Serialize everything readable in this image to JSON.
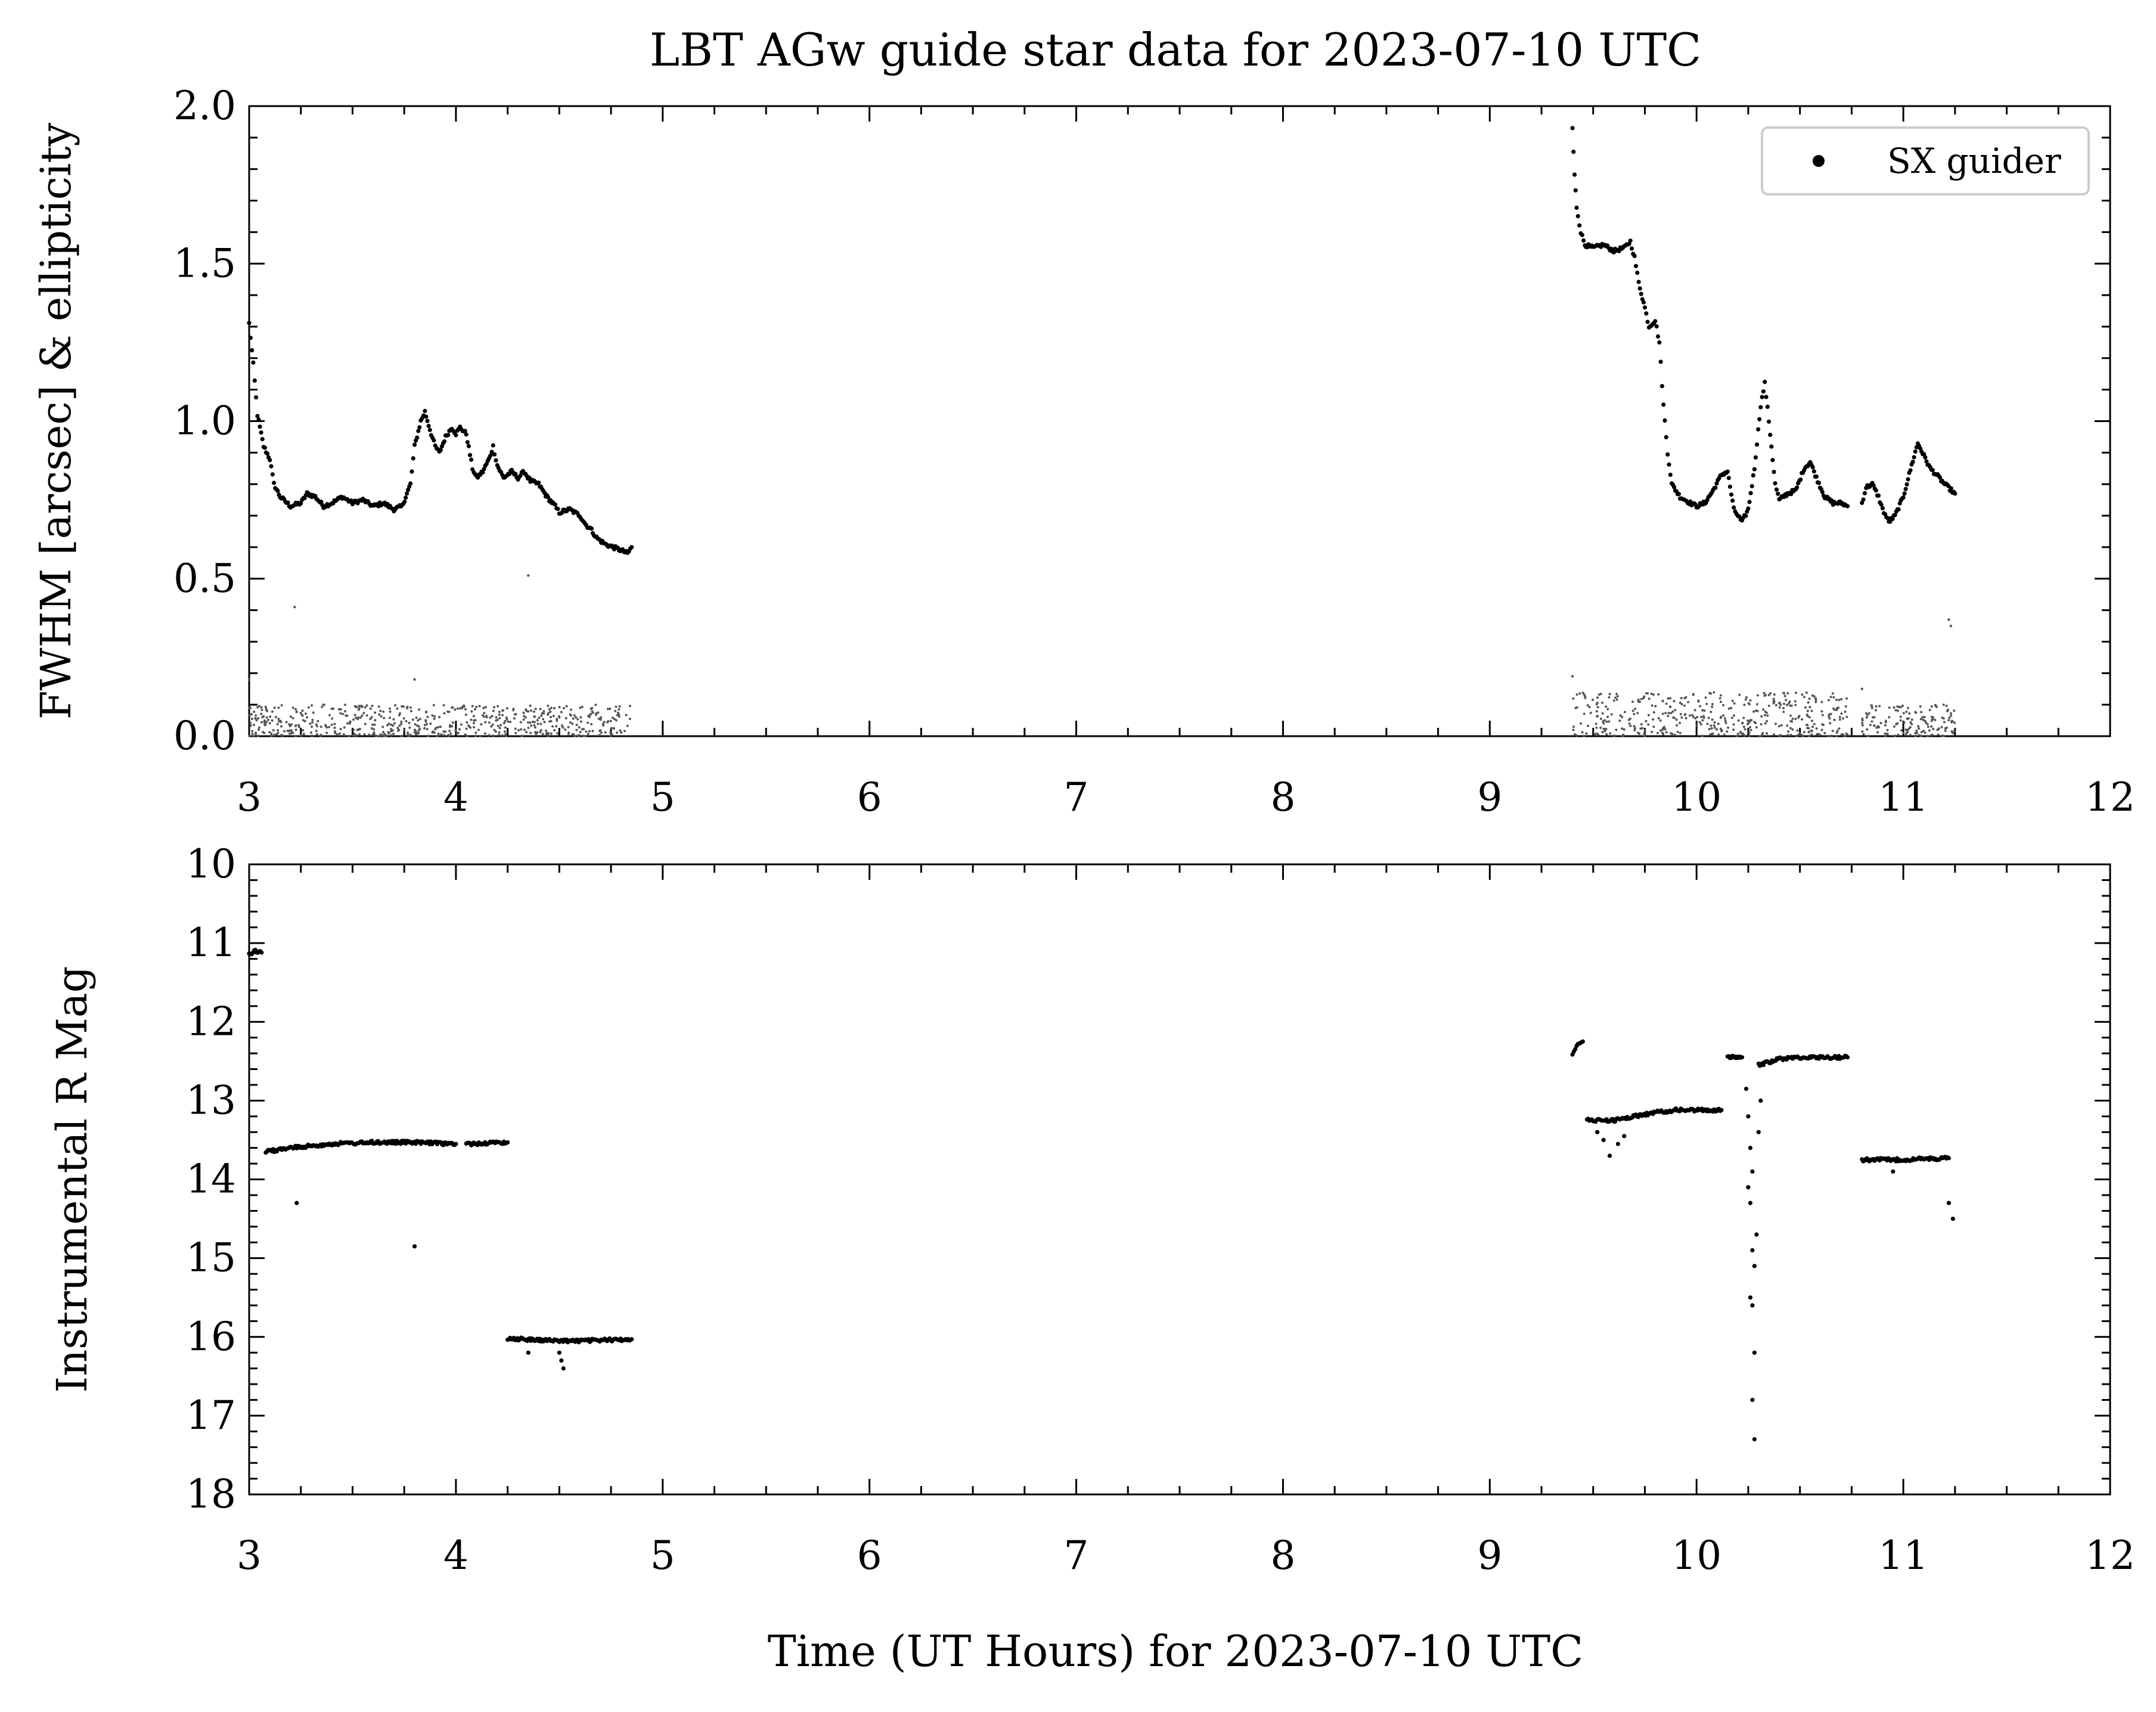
{
  "figure": {
    "title": "LBT AGw guide star data for 2023-07-10 UTC",
    "xlabel": "Time (UT Hours) for 2023-07-10 UTC"
  },
  "colors": {
    "fwhm": "#000000",
    "ellipticity": "#555555",
    "axes": "#000000",
    "legend_border": "#cccccc"
  },
  "chart_data": [
    {
      "type": "scatter",
      "title": "LBT AGw guide star data for 2023-07-10 UTC",
      "xlabel": "",
      "ylabel": "FWHM [arcsec] & ellipticity",
      "xlim": [
        3,
        12
      ],
      "ylim": [
        0,
        2.0
      ],
      "xticks": [
        3,
        4,
        5,
        6,
        7,
        8,
        9,
        10,
        11,
        12
      ],
      "yticks": [
        0.0,
        0.5,
        1.0,
        1.5,
        2.0
      ],
      "ytick_labels": [
        "0.0",
        "0.5",
        "1.0",
        "1.5",
        "2.0"
      ],
      "grid": false,
      "legend": {
        "position": "top-right",
        "entries": [
          "SX guider"
        ]
      },
      "series": [
        {
          "name": "SX guider",
          "kind": "fwhm",
          "segments": [
            [
              [
                3.0,
                1.31
              ],
              [
                3.02,
                1.18
              ],
              [
                3.04,
                1.02
              ],
              [
                3.07,
                0.92
              ],
              [
                3.1,
                0.88
              ],
              [
                3.12,
                0.8
              ],
              [
                3.15,
                0.76
              ],
              [
                3.2,
                0.73
              ],
              [
                3.25,
                0.74
              ],
              [
                3.28,
                0.77
              ],
              [
                3.32,
                0.76
              ],
              [
                3.36,
                0.73
              ],
              [
                3.4,
                0.74
              ],
              [
                3.45,
                0.76
              ],
              [
                3.5,
                0.74
              ],
              [
                3.55,
                0.75
              ],
              [
                3.6,
                0.73
              ],
              [
                3.65,
                0.74
              ],
              [
                3.7,
                0.72
              ],
              [
                3.74,
                0.73
              ],
              [
                3.78,
                0.8
              ],
              [
                3.8,
                0.92
              ],
              [
                3.83,
                1.0
              ],
              [
                3.85,
                1.03
              ],
              [
                3.88,
                0.96
              ],
              [
                3.9,
                0.92
              ],
              [
                3.92,
                0.9
              ],
              [
                3.95,
                0.95
              ],
              [
                3.98,
                0.98
              ],
              [
                4.0,
                0.96
              ],
              [
                4.02,
                0.98
              ],
              [
                4.05,
                0.96
              ],
              [
                4.08,
                0.85
              ],
              [
                4.1,
                0.82
              ],
              [
                4.13,
                0.84
              ],
              [
                4.16,
                0.88
              ],
              [
                4.18,
                0.92
              ],
              [
                4.2,
                0.86
              ],
              [
                4.23,
                0.82
              ],
              [
                4.27,
                0.84
              ],
              [
                4.3,
                0.82
              ],
              [
                4.33,
                0.84
              ],
              [
                4.36,
                0.81
              ],
              [
                4.4,
                0.8
              ],
              [
                4.44,
                0.76
              ],
              [
                4.48,
                0.73
              ],
              [
                4.5,
                0.71
              ],
              [
                4.55,
                0.72
              ],
              [
                4.6,
                0.7
              ],
              [
                4.63,
                0.67
              ],
              [
                4.65,
                0.66
              ],
              [
                4.68,
                0.63
              ],
              [
                4.72,
                0.61
              ],
              [
                4.76,
                0.6
              ],
              [
                4.8,
                0.59
              ],
              [
                4.83,
                0.58
              ],
              [
                4.85,
                0.6
              ]
            ],
            [
              [
                9.4,
                1.93
              ],
              [
                9.41,
                1.78
              ],
              [
                9.42,
                1.68
              ],
              [
                9.44,
                1.6
              ],
              [
                9.46,
                1.56
              ],
              [
                9.5,
                1.55
              ],
              [
                9.55,
                1.56
              ],
              [
                9.6,
                1.54
              ],
              [
                9.65,
                1.55
              ],
              [
                9.68,
                1.57
              ],
              [
                9.7,
                1.52
              ],
              [
                9.72,
                1.44
              ],
              [
                9.75,
                1.36
              ],
              [
                9.77,
                1.3
              ],
              [
                9.8,
                1.32
              ],
              [
                9.82,
                1.25
              ],
              [
                9.84,
                1.05
              ],
              [
                9.86,
                0.9
              ],
              [
                9.88,
                0.8
              ],
              [
                9.92,
                0.76
              ],
              [
                9.97,
                0.74
              ],
              [
                10.0,
                0.73
              ],
              [
                10.04,
                0.74
              ],
              [
                10.08,
                0.78
              ],
              [
                10.12,
                0.83
              ],
              [
                10.15,
                0.84
              ],
              [
                10.18,
                0.72
              ],
              [
                10.2,
                0.7
              ],
              [
                10.22,
                0.68
              ],
              [
                10.25,
                0.72
              ],
              [
                10.28,
                0.85
              ],
              [
                10.31,
                1.05
              ],
              [
                10.33,
                1.12
              ],
              [
                10.35,
                1.0
              ],
              [
                10.38,
                0.8
              ],
              [
                10.4,
                0.75
              ],
              [
                10.44,
                0.77
              ],
              [
                10.48,
                0.78
              ],
              [
                10.52,
                0.85
              ],
              [
                10.55,
                0.87
              ],
              [
                10.58,
                0.82
              ],
              [
                10.62,
                0.76
              ],
              [
                10.66,
                0.74
              ],
              [
                10.7,
                0.74
              ],
              [
                10.73,
                0.73
              ]
            ],
            [
              [
                10.8,
                0.74
              ],
              [
                10.82,
                0.79
              ],
              [
                10.85,
                0.8
              ],
              [
                10.88,
                0.76
              ],
              [
                10.9,
                0.72
              ],
              [
                10.93,
                0.68
              ],
              [
                10.96,
                0.7
              ],
              [
                11.0,
                0.76
              ],
              [
                11.04,
                0.86
              ],
              [
                11.07,
                0.93
              ],
              [
                11.1,
                0.89
              ],
              [
                11.13,
                0.85
              ],
              [
                11.16,
                0.83
              ],
              [
                11.2,
                0.8
              ],
              [
                11.25,
                0.77
              ]
            ]
          ]
        },
        {
          "name": "",
          "kind": "ellipticity",
          "ranges": [
            {
              "x": [
                3.0,
                4.85
              ],
              "y": [
                0.0,
                0.1
              ]
            },
            {
              "x": [
                9.4,
                10.73
              ],
              "y": [
                0.0,
                0.14
              ]
            },
            {
              "x": [
                10.8,
                11.25
              ],
              "y": [
                0.0,
                0.1
              ]
            }
          ],
          "outliers": [
            [
              3.0,
              0.18
            ],
            [
              3.22,
              0.41
            ],
            [
              3.8,
              0.18
            ],
            [
              4.35,
              0.51
            ],
            [
              9.4,
              0.19
            ],
            [
              10.8,
              0.15
            ],
            [
              11.22,
              0.37
            ],
            [
              11.23,
              0.35
            ]
          ]
        }
      ]
    },
    {
      "type": "scatter",
      "title": "",
      "xlabel": "Time (UT Hours) for 2023-07-10 UTC",
      "ylabel": "Instrumental R Mag",
      "xlim": [
        3,
        12
      ],
      "ylim": [
        18,
        10
      ],
      "inverted_y": true,
      "xticks": [
        3,
        4,
        5,
        6,
        7,
        8,
        9,
        10,
        11,
        12
      ],
      "yticks": [
        10,
        11,
        12,
        13,
        14,
        15,
        16,
        17,
        18
      ],
      "grid": false,
      "series": [
        {
          "name": "SX guider",
          "segments": [
            [
              [
                3.0,
                11.15
              ],
              [
                3.03,
                11.1
              ],
              [
                3.06,
                11.12
              ]
            ],
            [
              [
                3.08,
                13.65
              ],
              [
                3.2,
                13.6
              ],
              [
                3.4,
                13.55
              ],
              [
                3.6,
                13.53
              ],
              [
                3.8,
                13.53
              ],
              [
                4.0,
                13.55
              ]
            ],
            [
              [
                4.05,
                13.55
              ],
              [
                4.25,
                13.53
              ]
            ],
            [
              [
                4.25,
                16.02
              ],
              [
                4.5,
                16.05
              ],
              [
                4.6,
                16.05
              ],
              [
                4.85,
                16.03
              ]
            ],
            [
              [
                9.4,
                12.4
              ],
              [
                9.42,
                12.3
              ],
              [
                9.45,
                12.25
              ]
            ],
            [
              [
                9.47,
                13.25
              ],
              [
                9.6,
                13.25
              ],
              [
                9.7,
                13.2
              ],
              [
                9.8,
                13.15
              ],
              [
                9.9,
                13.12
              ],
              [
                10.12,
                13.12
              ]
            ],
            [
              [
                10.15,
                12.45
              ],
              [
                10.22,
                12.45
              ]
            ],
            [
              [
                10.3,
                12.55
              ],
              [
                10.4,
                12.47
              ],
              [
                10.5,
                12.45
              ],
              [
                10.73,
                12.45
              ]
            ],
            [
              [
                10.8,
                13.75
              ],
              [
                11.0,
                13.75
              ],
              [
                11.22,
                13.73
              ]
            ]
          ],
          "outliers": [
            [
              3.23,
              14.3
            ],
            [
              3.8,
              14.85
            ],
            [
              4.35,
              16.2
            ],
            [
              4.5,
              16.2
            ],
            [
              4.51,
              16.3
            ],
            [
              4.52,
              16.4
            ],
            [
              9.52,
              13.4
            ],
            [
              9.55,
              13.5
            ],
            [
              9.58,
              13.7
            ],
            [
              9.62,
              13.55
            ],
            [
              9.65,
              13.45
            ],
            [
              10.24,
              12.85
            ],
            [
              10.25,
              13.2
            ],
            [
              10.26,
              13.6
            ],
            [
              10.27,
              13.9
            ],
            [
              10.25,
              14.1
            ],
            [
              10.26,
              14.3
            ],
            [
              10.27,
              14.9
            ],
            [
              10.28,
              15.1
            ],
            [
              10.26,
              15.5
            ],
            [
              10.27,
              15.6
            ],
            [
              10.28,
              16.2
            ],
            [
              10.27,
              16.8
            ],
            [
              10.28,
              17.3
            ],
            [
              10.29,
              14.7
            ],
            [
              10.3,
              13.4
            ],
            [
              10.31,
              13.0
            ],
            [
              10.95,
              13.9
            ],
            [
              11.22,
              14.3
            ],
            [
              11.24,
              14.5
            ]
          ]
        }
      ]
    }
  ]
}
